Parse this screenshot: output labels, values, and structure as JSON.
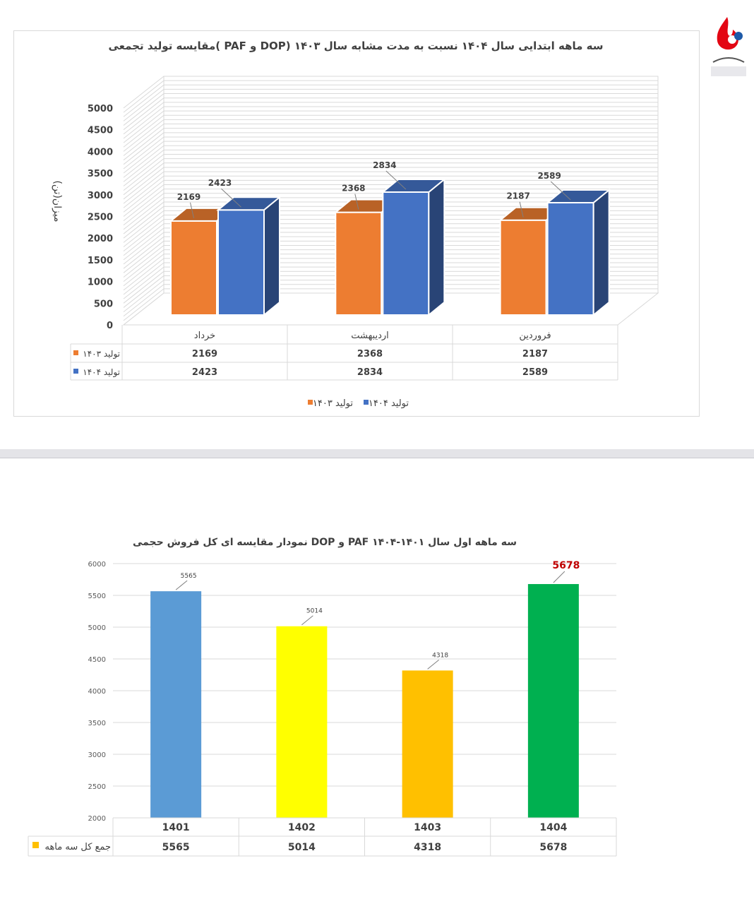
{
  "chart_data": [
    {
      "type": "bar",
      "title": "مقایسه تولید تجمعی( PAF و DOP) سه ماهه ابتدایی سال ۱۴۰۴ نسبت به مدت مشابه سال ۱۴۰۳",
      "ylabel": "میزان(تن)",
      "categories": [
        "فروردین",
        "اردیبهشت",
        "خرداد"
      ],
      "series": [
        {
          "name": "تولید ۱۴۰۳",
          "values": [
            2187,
            2368,
            2169
          ],
          "color": "#ed7d31"
        },
        {
          "name": "تولید ۱۴۰۴",
          "values": [
            2589,
            2834,
            2423
          ],
          "color": "#4472c4"
        }
      ],
      "yticks": [
        "0",
        "500",
        "1000",
        "1500",
        "2000",
        "2500",
        "3000",
        "3500",
        "4000",
        "4500",
        "5000"
      ],
      "ylim": [
        0,
        5000
      ],
      "legend": [
        "تولید ۱۴۰۳",
        "تولید ۱۴۰۴"
      ],
      "data_table": true,
      "grid": true
    },
    {
      "type": "bar",
      "title": "نمودار مقایسه ای کل فروش حجمی DOP و PAF سه ماهه اول سال ۱۴۰۱-۱۴۰۴",
      "categories": [
        "1401",
        "1402",
        "1403",
        "1404"
      ],
      "series": [
        {
          "name": "جمع کل سه ماهه",
          "values": [
            5565,
            5014,
            4318,
            5678
          ]
        }
      ],
      "bar_colors": [
        "#5b9bd5",
        "#ffff00",
        "#ffc000",
        "#00b050"
      ],
      "data_labels": [
        "5565",
        "5014",
        "4318",
        "5678"
      ],
      "highlight_label_color": "#c00000",
      "yticks": [
        "2000",
        "2500",
        "3000",
        "3500",
        "4000",
        "4500",
        "5000",
        "5500",
        "6000"
      ],
      "ylim": [
        2000,
        6000
      ],
      "data_table": true,
      "grid": true
    }
  ],
  "logo": {
    "name": "company-logo",
    "colors": [
      "#e30613",
      "#1e5aa8"
    ]
  }
}
